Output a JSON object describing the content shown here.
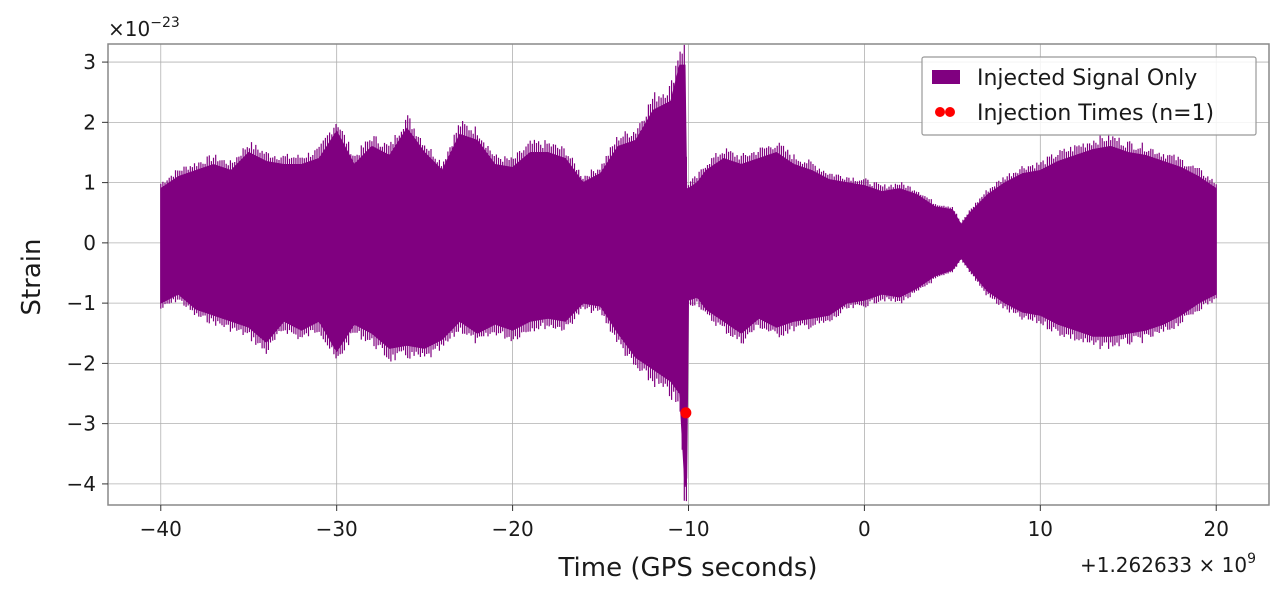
{
  "chart_data": {
    "type": "line",
    "xlabel": "Time (GPS seconds)",
    "ylabel": "Strain",
    "x_offset_label": "+1.262633 × 10",
    "x_offset_exp": "9",
    "y_scale_label": "×10",
    "y_scale_exp": "−23",
    "xlim": [
      -43,
      23
    ],
    "ylim": [
      -4.35,
      3.3
    ],
    "grid": true,
    "legend_position": "upper right",
    "x_ticks": [
      -40,
      -30,
      -20,
      -10,
      0,
      10,
      20
    ],
    "x_tick_labels": [
      "−40",
      "−30",
      "−20",
      "−10",
      "0",
      "10",
      "20"
    ],
    "y_ticks": [
      -4,
      -3,
      -2,
      -1,
      0,
      1,
      2,
      3
    ],
    "y_tick_labels": [
      "−4",
      "−3",
      "−2",
      "−1",
      "0",
      "1",
      "2",
      "3"
    ],
    "series": [
      {
        "name": "Injected Signal Only",
        "kind": "filled-envelope",
        "color": "#800080",
        "x": [
          -40,
          -39,
          -38,
          -37,
          -36,
          -35,
          -34,
          -33,
          -32,
          -31,
          -30,
          -29,
          -28,
          -27,
          -26,
          -25,
          -24,
          -23,
          -22,
          -21,
          -20,
          -19,
          -18,
          -17,
          -16,
          -15,
          -14,
          -13,
          -12,
          -11,
          -10.5,
          -10.2,
          -10.1,
          -10,
          -9.5,
          -9,
          -8,
          -7,
          -6,
          -5,
          -4,
          -3,
          -2,
          -1,
          0,
          1,
          2,
          3,
          4,
          5,
          5.5,
          6,
          7,
          8,
          9,
          10,
          11,
          12,
          13,
          14,
          15,
          16,
          17,
          18,
          19,
          20
        ],
        "upper": [
          0.9,
          1.1,
          1.2,
          1.3,
          1.2,
          1.5,
          1.35,
          1.3,
          1.3,
          1.4,
          1.85,
          1.3,
          1.6,
          1.45,
          1.9,
          1.5,
          1.2,
          1.8,
          1.7,
          1.3,
          1.25,
          1.5,
          1.5,
          1.4,
          1.0,
          1.15,
          1.6,
          1.7,
          2.2,
          2.35,
          2.95,
          2.95,
          0.9,
          0.9,
          1.0,
          1.2,
          1.4,
          1.3,
          1.4,
          1.5,
          1.3,
          1.2,
          1.05,
          1.0,
          0.95,
          0.85,
          0.9,
          0.8,
          0.6,
          0.55,
          0.3,
          0.5,
          0.8,
          1.0,
          1.15,
          1.2,
          1.35,
          1.45,
          1.55,
          1.6,
          1.5,
          1.45,
          1.35,
          1.25,
          1.1,
          0.9
        ],
        "lower": [
          -1.0,
          -0.85,
          -1.1,
          -1.2,
          -1.3,
          -1.4,
          -1.65,
          -1.3,
          -1.45,
          -1.3,
          -1.8,
          -1.35,
          -1.5,
          -1.75,
          -1.7,
          -1.75,
          -1.6,
          -1.3,
          -1.5,
          -1.35,
          -1.45,
          -1.3,
          -1.25,
          -1.3,
          -1.0,
          -1.05,
          -1.5,
          -1.9,
          -2.1,
          -2.3,
          -2.5,
          -4.05,
          -3.9,
          -0.95,
          -0.9,
          -1.1,
          -1.3,
          -1.5,
          -1.25,
          -1.4,
          -1.3,
          -1.25,
          -1.2,
          -1.0,
          -0.95,
          -0.85,
          -0.9,
          -0.75,
          -0.55,
          -0.45,
          -0.25,
          -0.45,
          -0.8,
          -1.0,
          -1.15,
          -1.2,
          -1.35,
          -1.45,
          -1.55,
          -1.55,
          -1.5,
          -1.45,
          -1.35,
          -1.2,
          -1.0,
          -0.85
        ]
      },
      {
        "name": "Injection Times (n=1)",
        "kind": "scatter",
        "color": "#ff0000",
        "x": [
          -10.15
        ],
        "y": [
          -2.82
        ]
      }
    ]
  }
}
